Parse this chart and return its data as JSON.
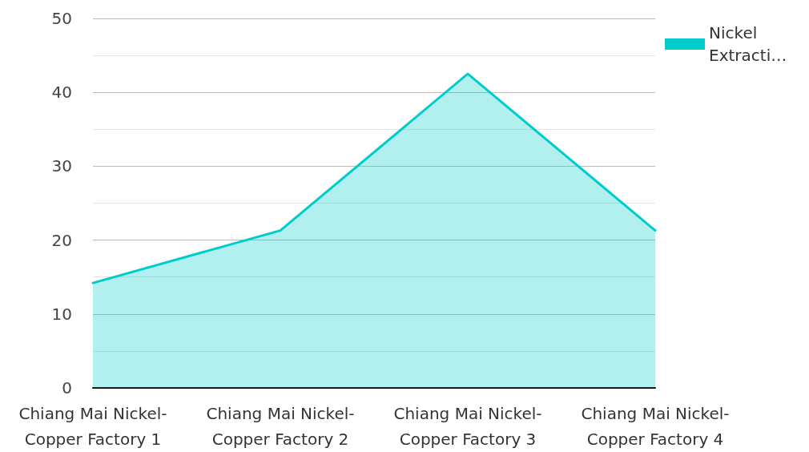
{
  "chart_data": {
    "type": "area",
    "categories": [
      "Chiang Mai Nickel-Copper Factory 1",
      "Chiang Mai Nickel-Copper Factory 2",
      "Chiang Mai Nickel-Copper Factory 3",
      "Chiang Mai Nickel-Copper Factory 4"
    ],
    "series": [
      {
        "name": "Nickel Extracti…",
        "color": "#00cccc",
        "values": [
          14.2,
          21.3,
          42.5,
          21.3
        ]
      }
    ],
    "ylim": [
      0,
      50
    ],
    "yticks": [
      0,
      10,
      20,
      30,
      40,
      50
    ],
    "grid": "y",
    "legend": "top right",
    "marker": "none",
    "line_style": "solid"
  }
}
